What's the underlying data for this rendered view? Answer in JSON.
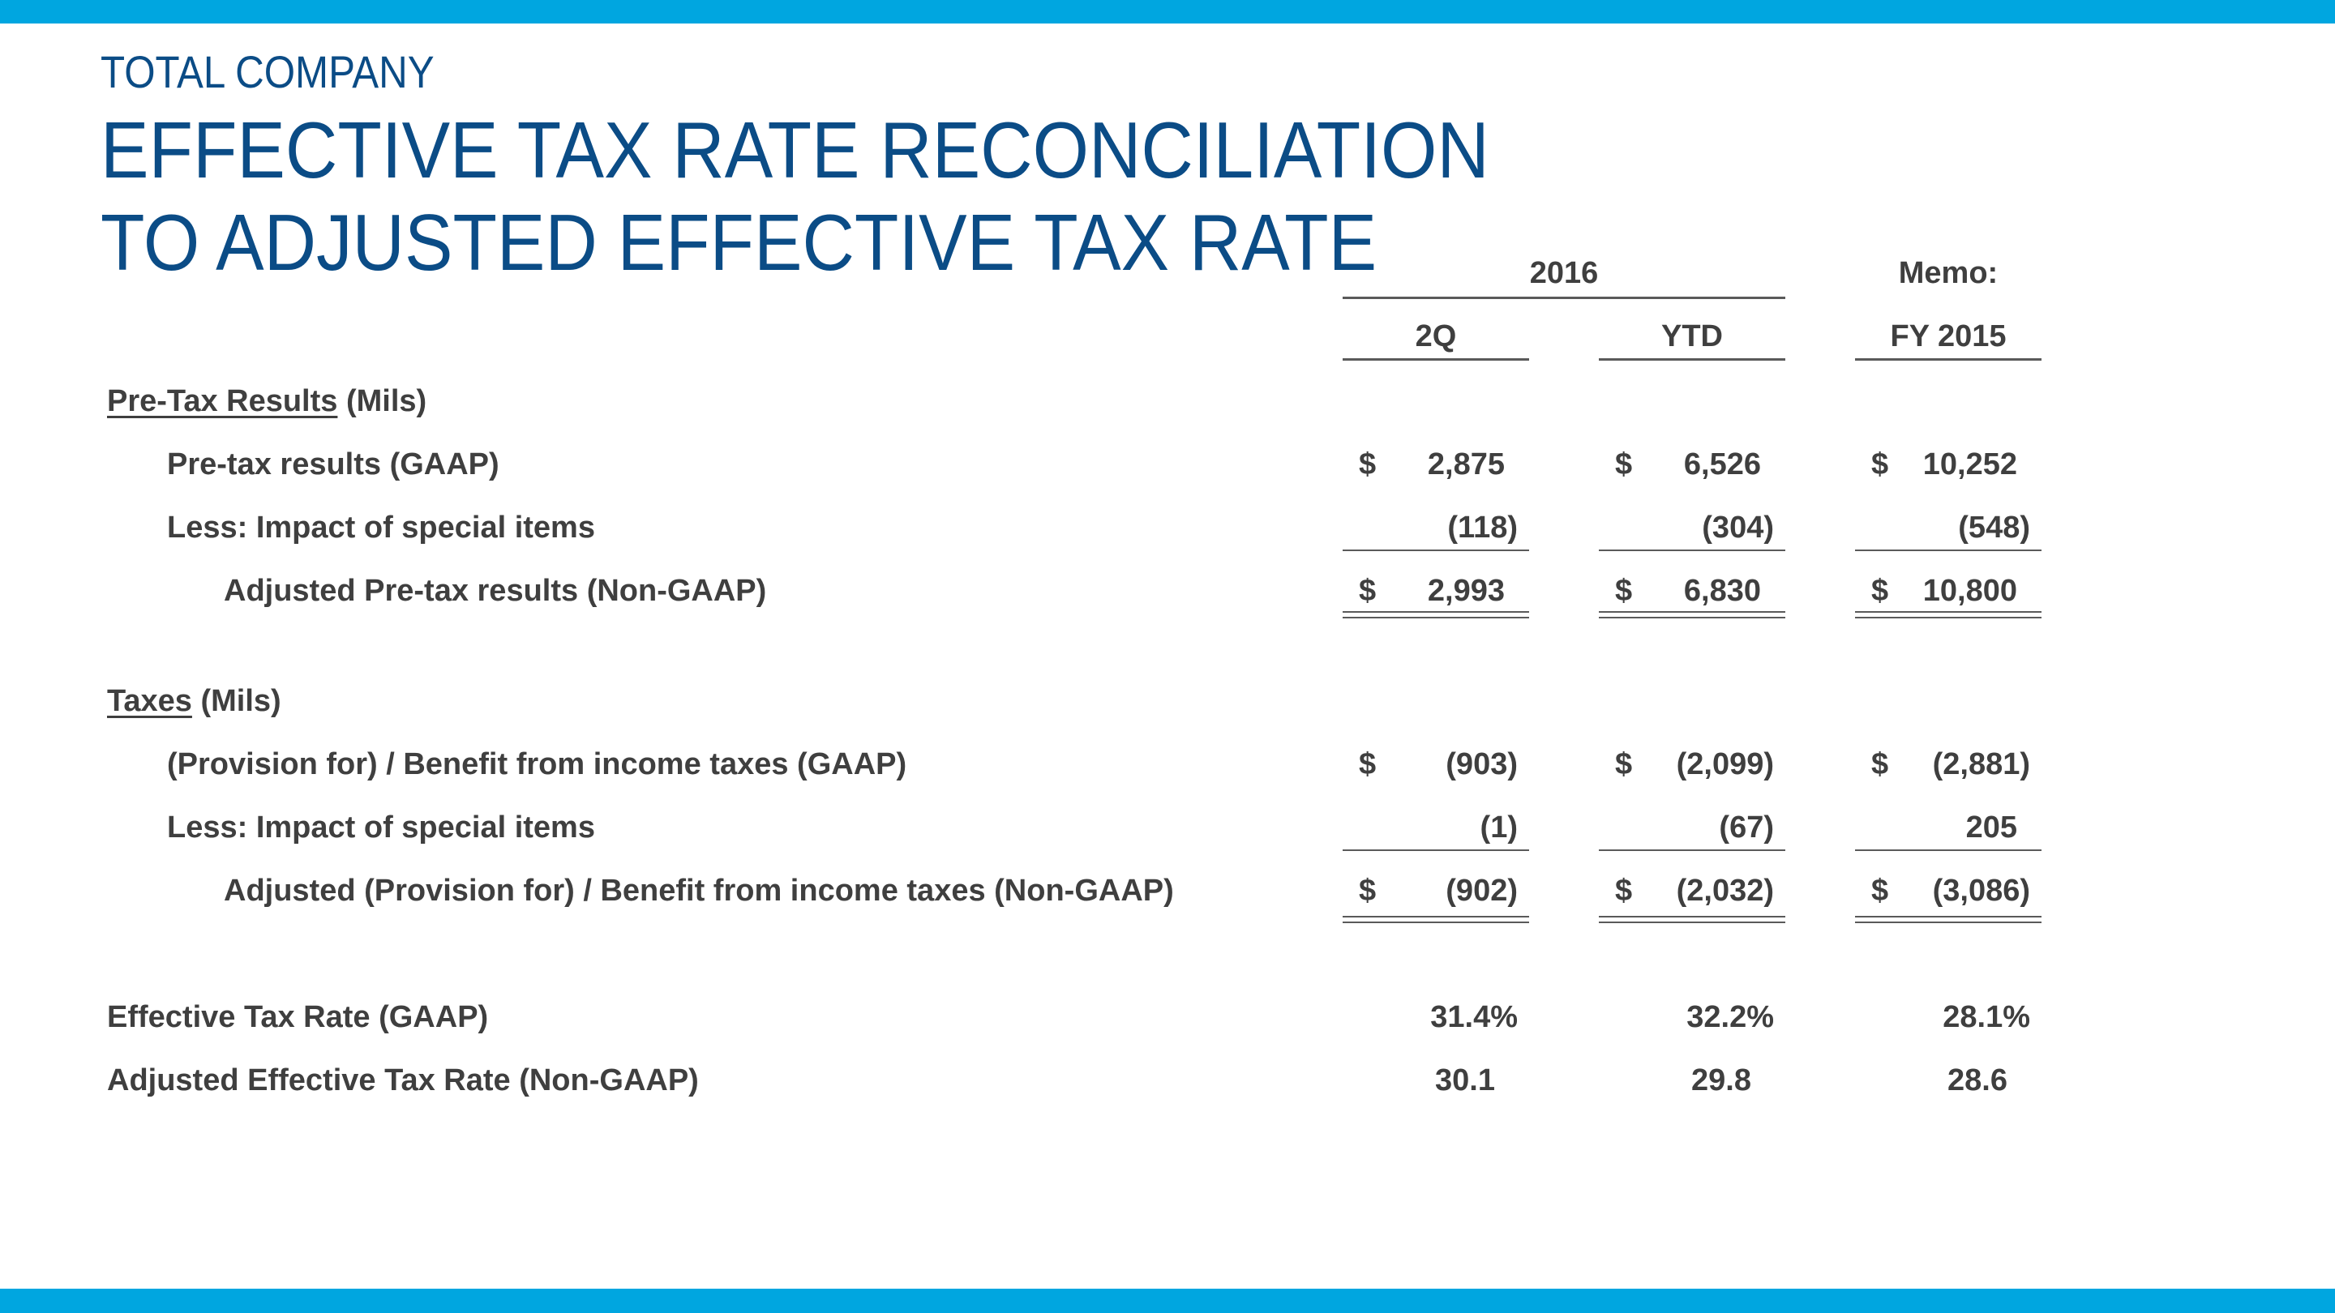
{
  "header": {
    "subtitle": "TOTAL COMPANY",
    "title": "EFFECTIVE TAX RATE RECONCILIATION TO ADJUSTED EFFECTIVE TAX RATE"
  },
  "columns": {
    "group_label": "2016",
    "memo_label": "Memo:",
    "col1": "2Q",
    "col2": "YTD",
    "col3": "FY 2015"
  },
  "pretax": {
    "section_title": "Pre-Tax Results",
    "section_unit": "(Mils)",
    "rows": [
      {
        "label": "Pre-tax results (GAAP)",
        "v1": "2,875",
        "v2": "6,526",
        "v3": "10,252"
      },
      {
        "label": "Less:  Impact of special items",
        "v1": "(118)",
        "v2": "(304)",
        "v3": "(548)"
      },
      {
        "label": "Adjusted Pre-tax results (Non-GAAP)",
        "v1": "2,993",
        "v2": "6,830",
        "v3": "10,800"
      }
    ]
  },
  "taxes": {
    "section_title": "Taxes",
    "section_unit": "(Mils)",
    "rows": [
      {
        "label": "(Provision for) / Benefit from income taxes (GAAP)",
        "v1": "(903)",
        "v2": "(2,099)",
        "v3": "(2,881)"
      },
      {
        "label": "Less:  Impact of special items",
        "v1": "(1)",
        "v2": "(67)",
        "v3": "205"
      },
      {
        "label": "Adjusted (Provision for) / Benefit from income taxes (Non-GAAP)",
        "v1": "(902)",
        "v2": "(2,032)",
        "v3": "(3,086)"
      }
    ]
  },
  "rates": {
    "rows": [
      {
        "label": "Effective Tax Rate (GAAP)",
        "v1": "31.4%",
        "v2": "32.2%",
        "v3": "28.1%"
      },
      {
        "label": "Adjusted Effective Tax Rate (Non-GAAP)",
        "v1": "30.1",
        "v2": "29.8",
        "v3": "28.6"
      }
    ]
  },
  "currency_symbol": "$",
  "colors": {
    "accent_bar": "#00a6e0",
    "title": "#0b4c86",
    "text": "#3f3f3f"
  }
}
